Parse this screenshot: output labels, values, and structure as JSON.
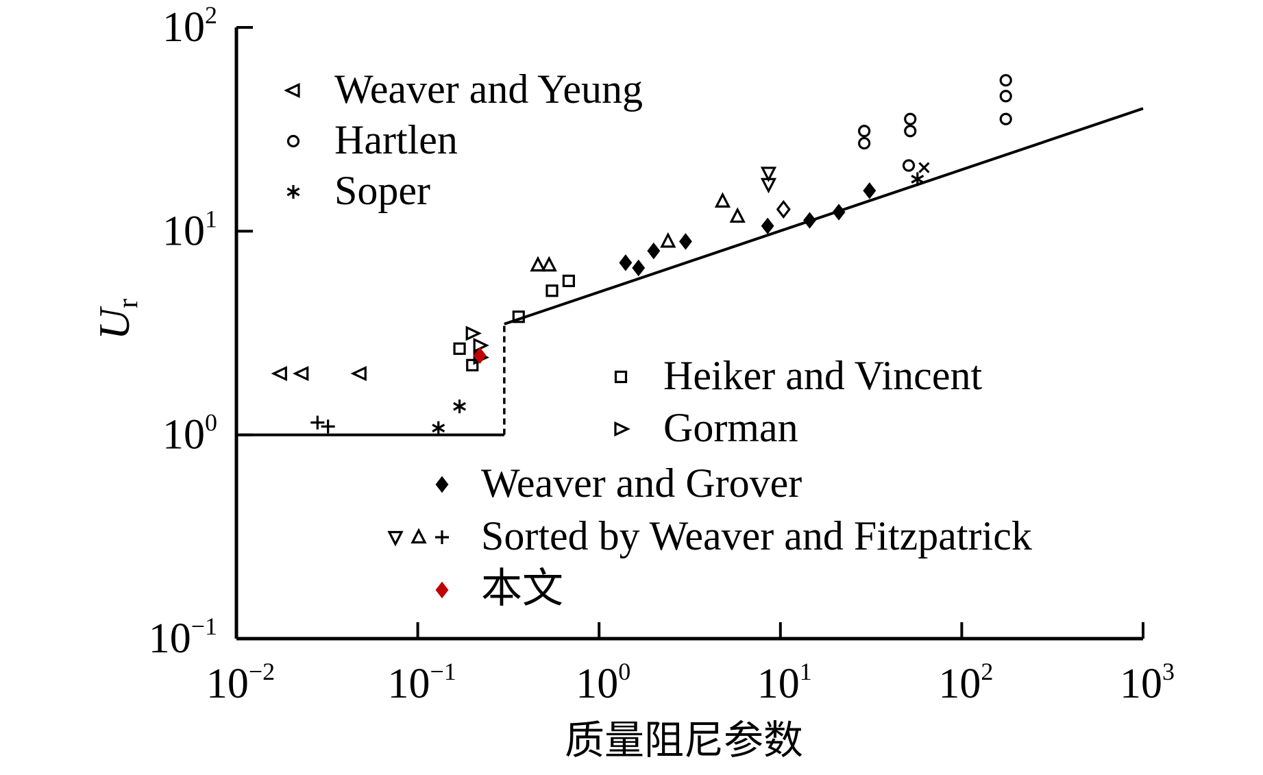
{
  "chart_data": {
    "type": "scatter",
    "xscale": "log",
    "yscale": "log",
    "xlim": [
      0.01,
      1000
    ],
    "ylim": [
      0.1,
      100
    ],
    "xlabel": "质量阻尼参数",
    "ylabel": {
      "main": "U",
      "sub": "r"
    },
    "x_ticks": [
      {
        "base": "10",
        "exp": "−2",
        "value": 0.01
      },
      {
        "base": "10",
        "exp": "−1",
        "value": 0.1
      },
      {
        "base": "10",
        "exp": "0",
        "value": 1
      },
      {
        "base": "10",
        "exp": "1",
        "value": 10
      },
      {
        "base": "10",
        "exp": "2",
        "value": 100
      },
      {
        "base": "10",
        "exp": "3",
        "value": 1000
      }
    ],
    "y_ticks": [
      {
        "base": "10",
        "exp": "−1",
        "value": 0.1
      },
      {
        "base": "10",
        "exp": "0",
        "value": 1
      },
      {
        "base": "10",
        "exp": "1",
        "value": 10
      },
      {
        "base": "10",
        "exp": "2",
        "value": 100
      }
    ],
    "threshold_line": [
      [
        0.01,
        1.0
      ],
      [
        0.3,
        1.0
      ],
      [
        0.3,
        3.5
      ],
      [
        1000,
        40
      ]
    ],
    "series": [
      {
        "name": "Weaver and Yeung",
        "marker": "triangle-left",
        "color": "#000000",
        "points": [
          [
            0.0175,
            2.0
          ],
          [
            0.023,
            2.0
          ],
          [
            0.048,
            2.0
          ]
        ]
      },
      {
        "name": "Hartlen",
        "marker": "circle",
        "color": "#000000",
        "points": [
          [
            29,
            27
          ],
          [
            29,
            31
          ],
          [
            51,
            21
          ],
          [
            52,
            31
          ],
          [
            52,
            35.5
          ],
          [
            175,
            35.5
          ],
          [
            175,
            46
          ],
          [
            175,
            55
          ]
        ]
      },
      {
        "name": "Soper",
        "marker": "asterisk",
        "color": "#000000",
        "points": [
          [
            0.13,
            1.08
          ],
          [
            0.17,
            1.38
          ],
          [
            57,
            18
          ]
        ]
      },
      {
        "name": "Heiker and Vincent",
        "marker": "square",
        "color": "#000000",
        "points": [
          [
            0.36,
            3.8
          ],
          [
            0.55,
            5.1
          ],
          [
            0.68,
            5.7
          ],
          [
            0.17,
            2.65
          ],
          [
            0.2,
            2.2
          ]
        ]
      },
      {
        "name": "Gorman",
        "marker": "triangle-right",
        "color": "#000000",
        "points": [
          [
            0.2,
            3.15
          ],
          [
            0.22,
            2.75
          ],
          [
            0.22,
            2.4
          ]
        ]
      },
      {
        "name": "Weaver and Grover",
        "marker": "diamond",
        "color": "#000000",
        "points": [
          [
            1.4,
            7.0
          ],
          [
            1.65,
            6.6
          ],
          [
            2.0,
            8.0
          ],
          [
            3.0,
            8.9
          ],
          [
            8.5,
            10.6
          ],
          [
            14.5,
            11.3
          ],
          [
            21,
            12.4
          ],
          [
            31,
            15.8
          ]
        ]
      },
      {
        "name": "Sorted by Weaver and Fitzpatrick",
        "marker": "triangle-down",
        "color": "#000000",
        "points": [
          [
            8.6,
            19.3
          ],
          [
            8.6,
            17.0
          ]
        ]
      },
      {
        "name": "Sorted by Weaver and Fitzpatrick",
        "marker": "triangle-up",
        "color": "#000000",
        "points": [
          [
            0.46,
            6.8
          ],
          [
            0.53,
            6.8
          ],
          [
            2.4,
            8.9
          ],
          [
            4.8,
            14.0
          ],
          [
            5.8,
            11.8
          ]
        ]
      },
      {
        "name": "Sorted by Weaver and Fitzpatrick",
        "marker": "plus",
        "color": "#000000",
        "points": [
          [
            0.028,
            1.15
          ],
          [
            0.032,
            1.1
          ]
        ]
      },
      {
        "name": "Sorted by Weaver and Fitzpatrick",
        "marker": "diamond-open",
        "color": "#000000",
        "points": [
          [
            10.4,
            12.8
          ]
        ]
      },
      {
        "name": "Sorted by Weaver and Fitzpatrick",
        "marker": "cross",
        "color": "#000000",
        "points": [
          [
            62,
            20.5
          ]
        ]
      },
      {
        "name": "本文",
        "marker": "diamond",
        "color": "#c00000",
        "points": [
          [
            0.22,
            2.45
          ]
        ]
      }
    ],
    "legend_top": [
      {
        "label": "Weaver and Yeung",
        "markers": [
          "triangle-left"
        ]
      },
      {
        "label": "Hartlen",
        "markers": [
          "circle"
        ]
      },
      {
        "label": "Soper",
        "markers": [
          "asterisk"
        ]
      }
    ],
    "legend_middle": [
      {
        "label": "Heiker and Vincent",
        "markers": [
          "square"
        ]
      },
      {
        "label": "Gorman",
        "markers": [
          "triangle-right"
        ]
      }
    ],
    "legend_bottom": [
      {
        "label": "Weaver and Grover",
        "markers": [
          "diamond"
        ],
        "color": "#000000"
      },
      {
        "label": "Sorted by Weaver and Fitzpatrick",
        "markers": [
          "triangle-down",
          "triangle-up",
          "plus"
        ],
        "color": "#000000"
      },
      {
        "label": "本文",
        "markers": [
          "diamond"
        ],
        "color": "#c00000"
      }
    ]
  }
}
